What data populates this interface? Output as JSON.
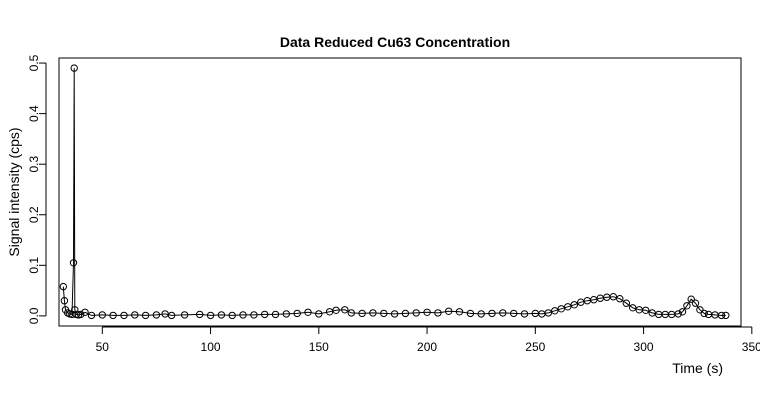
{
  "chart_data": {
    "type": "scatter",
    "title": "Data Reduced Cu63 Concentration",
    "xlabel": "Time (s)",
    "ylabel": "Signal intensity (cps)",
    "xlim": [
      30,
      345
    ],
    "ylim": [
      -0.02,
      0.51
    ],
    "x_ticks": [
      50,
      100,
      150,
      200,
      250,
      300,
      350
    ],
    "y_ticks": [
      0.0,
      0.1,
      0.2,
      0.3,
      0.4,
      0.5
    ],
    "x_tick_labels": [
      "50",
      "100",
      "150",
      "200",
      "250",
      "300",
      "350"
    ],
    "y_tick_labels": [
      "0.0",
      "0.1",
      "0.2",
      "0.3",
      "0.4",
      "0.5"
    ],
    "grid": false,
    "legend": "none",
    "line_and_points": true,
    "colors": {
      "stroke": "#000000",
      "background": "#ffffff"
    },
    "series": [
      {
        "x": [
          32.0,
          32.5,
          33.0,
          34.0,
          35.0,
          36.0,
          36.7,
          37.0,
          37.3,
          38.0,
          39.0,
          40.0,
          42.0,
          45.0,
          50.0,
          55.0,
          60.0,
          65.0,
          70.0,
          75.0,
          79.0,
          82.0,
          88.0,
          95.0,
          100.0,
          105.0,
          110.0,
          115.0,
          120.0,
          125.0,
          130.0,
          135.0,
          140.0,
          145.0,
          150.0,
          155.0,
          158.0,
          162.0,
          165.0,
          170.0,
          175.0,
          180.0,
          185.0,
          190.0,
          195.0,
          200.0,
          205.0,
          210.0,
          215.0,
          220.0,
          225.0,
          230.0,
          235.0,
          240.0,
          245.0,
          250.0,
          253.0,
          256.0,
          259.0,
          262.0,
          265.0,
          268.0,
          271.0,
          274.0,
          277.0,
          280.0,
          283.0,
          286.0,
          289.0,
          292.0,
          295.0,
          298.0,
          301.0,
          304.0,
          307.0,
          310.0,
          313.0,
          316.0,
          318.0,
          320.0,
          322.0,
          324.0,
          326.0,
          328.0,
          330.0,
          333.0,
          336.0,
          338.0
        ],
        "y": [
          0.058,
          0.03,
          0.012,
          0.006,
          0.004,
          0.003,
          0.105,
          0.49,
          0.012,
          0.003,
          0.002,
          0.003,
          0.007,
          0.001,
          0.002,
          0.001,
          0.001,
          0.002,
          0.001,
          0.002,
          0.004,
          0.001,
          0.002,
          0.003,
          0.001,
          0.002,
          0.001,
          0.002,
          0.002,
          0.003,
          0.003,
          0.004,
          0.005,
          0.007,
          0.004,
          0.008,
          0.011,
          0.012,
          0.006,
          0.005,
          0.006,
          0.005,
          0.004,
          0.005,
          0.006,
          0.007,
          0.006,
          0.009,
          0.008,
          0.005,
          0.004,
          0.005,
          0.006,
          0.005,
          0.004,
          0.005,
          0.004,
          0.006,
          0.01,
          0.014,
          0.018,
          0.022,
          0.027,
          0.03,
          0.032,
          0.035,
          0.037,
          0.038,
          0.034,
          0.025,
          0.016,
          0.012,
          0.011,
          0.006,
          0.003,
          0.003,
          0.003,
          0.004,
          0.008,
          0.02,
          0.033,
          0.025,
          0.012,
          0.005,
          0.003,
          0.002,
          0.001,
          0.001
        ]
      }
    ]
  }
}
